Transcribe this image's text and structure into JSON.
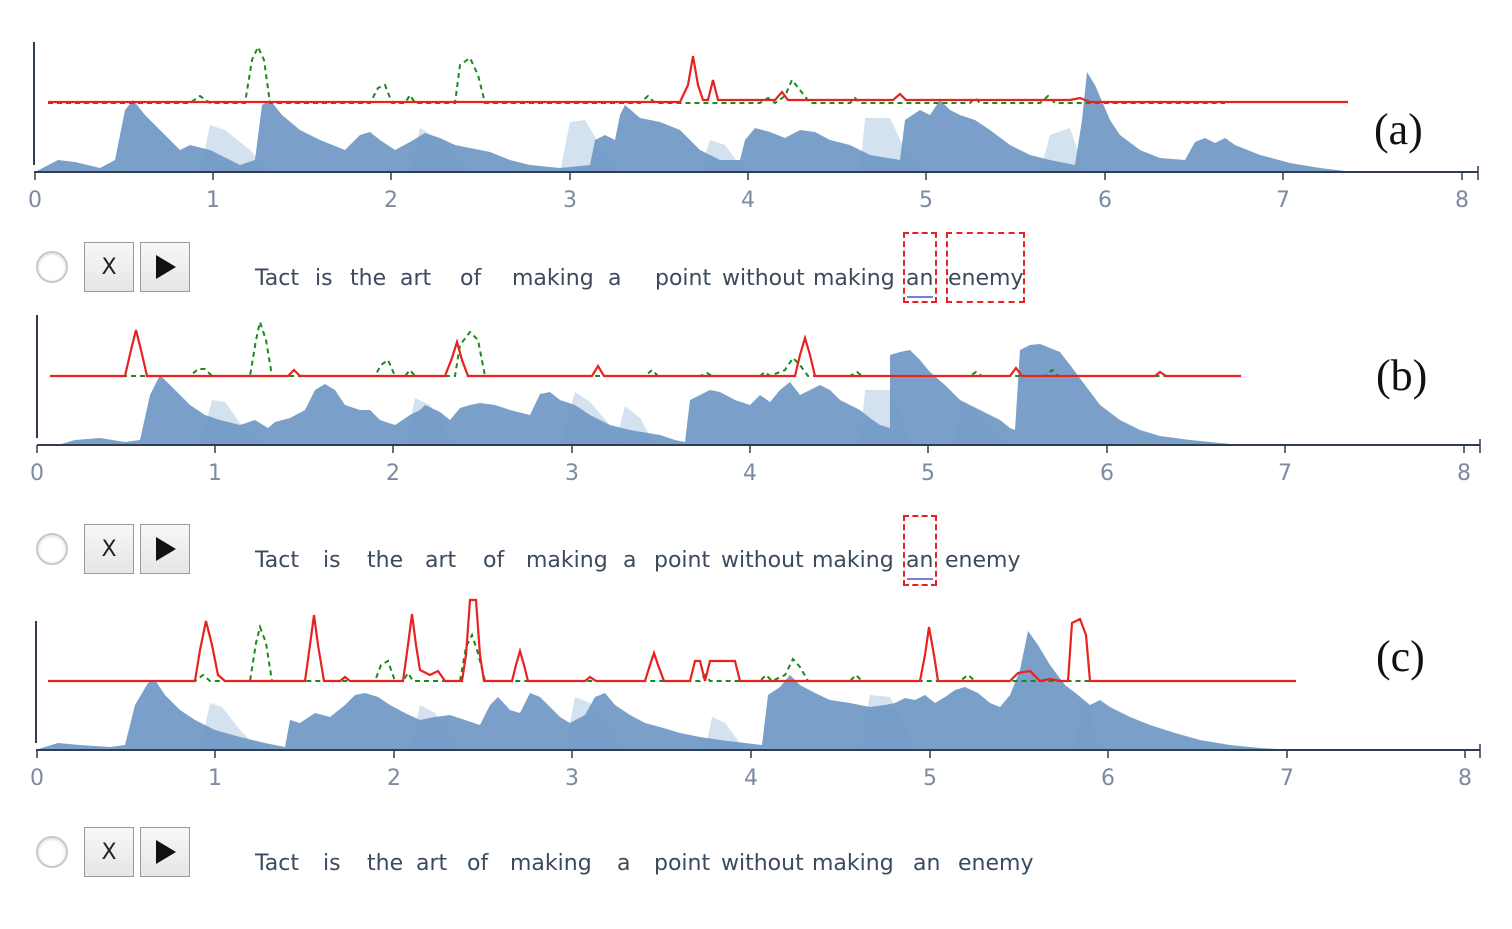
{
  "axis": {
    "ticks": [
      "0",
      "1",
      "2",
      "3",
      "4",
      "5",
      "6",
      "7",
      "8"
    ]
  },
  "colors": {
    "envelope": "#6f98c4",
    "envelope_light": "#c9d9ea",
    "red_curve": "#e8221f",
    "green_curve": "#1a8a1a",
    "axis": "#2f3d4f"
  },
  "controls": {
    "delete_label": "X",
    "radio_icon": "radio-icon",
    "play_icon": "play-icon"
  },
  "panels": [
    {
      "label": "(a)",
      "sentence": [
        "Tact",
        "is",
        "the",
        "art",
        "of",
        "making",
        "a",
        "point",
        "without",
        "making",
        "an",
        "enemy"
      ],
      "highlighted_words": [
        "an",
        "enemy"
      ]
    },
    {
      "label": "(b)",
      "sentence": [
        "Tact",
        "is",
        "the",
        "art",
        "of",
        "making",
        "a",
        "point",
        "without",
        "making",
        "an",
        "enemy"
      ],
      "highlighted_words": [
        "an"
      ]
    },
    {
      "label": "(c)",
      "sentence": [
        "Tact",
        "is",
        "the",
        "art",
        "of",
        "making",
        "a",
        "point",
        "without",
        "making",
        "an",
        "enemy"
      ],
      "highlighted_words": []
    }
  ]
}
